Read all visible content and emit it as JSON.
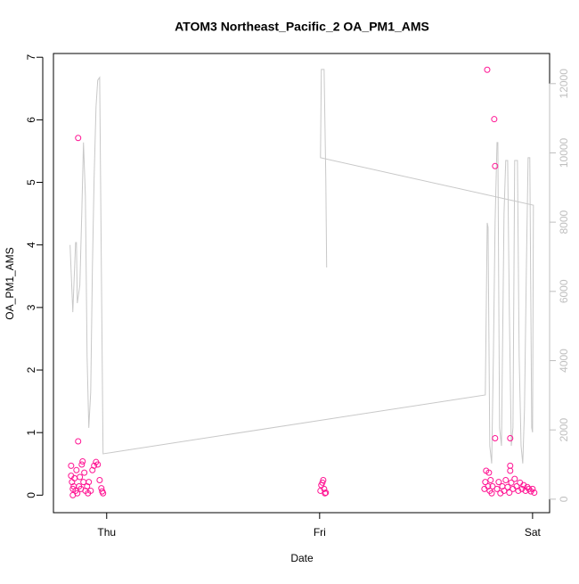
{
  "chart_data": {
    "type": "scatter",
    "title": "ATOM3 Northeast_Pacific_2 OA_PM1_AMS",
    "xlabel": "Date",
    "ylabel": "OA_PM1_AMS",
    "xlim": [
      -0.25,
      2.08
    ],
    "ylim": [
      -0.28,
      7.06
    ],
    "y2lim": [
      -390,
      12870
    ],
    "xticks": [
      {
        "value": 0,
        "label": "Thu"
      },
      {
        "value": 1,
        "label": "Fri"
      },
      {
        "value": 2,
        "label": "Sat"
      }
    ],
    "yticks": [
      0,
      1,
      2,
      3,
      4,
      5,
      6,
      7
    ],
    "y2ticks": [
      0,
      2000,
      4000,
      6000,
      8000,
      10000,
      12000
    ],
    "y2color": "#bfbfbf",
    "series": [
      {
        "type": "scatter",
        "color": "#ff1493",
        "x": [
          -0.167,
          -0.167,
          -0.163,
          -0.159,
          -0.159,
          -0.155,
          -0.151,
          -0.146,
          -0.142,
          -0.138,
          -0.134,
          -0.134,
          -0.13,
          -0.126,
          -0.121,
          -0.117,
          -0.113,
          -0.109,
          -0.105,
          -0.1,
          -0.092,
          -0.088,
          -0.084,
          -0.075,
          -0.067,
          -0.059,
          -0.05,
          -0.042,
          -0.033,
          -0.025,
          -0.021,
          -0.017,
          1.004,
          1.008,
          1.013,
          1.017,
          1.021,
          1.025,
          1.029,
          1.774,
          1.778,
          1.782,
          1.787,
          1.791,
          1.795,
          1.799,
          1.803,
          1.808,
          1.812,
          1.82,
          1.824,
          1.824,
          1.833,
          1.841,
          1.849,
          1.858,
          1.866,
          1.874,
          1.883,
          1.891,
          1.895,
          1.895,
          1.895,
          1.9,
          1.908,
          1.916,
          1.925,
          1.933,
          1.941,
          1.95,
          1.958,
          1.967,
          1.975,
          1.983,
          1.992,
          2.0,
          2.008
        ],
        "values": [
          0.47,
          0.31,
          0.21,
          0.1,
          0.0,
          0.14,
          0.27,
          0.07,
          0.4,
          0.03,
          5.71,
          0.86,
          0.14,
          0.29,
          0.1,
          0.49,
          0.54,
          0.21,
          0.36,
          0.07,
          0.14,
          0.03,
          0.21,
          0.07,
          0.4,
          0.47,
          0.53,
          0.49,
          0.24,
          0.11,
          0.06,
          0.03,
          0.07,
          0.16,
          0.2,
          0.24,
          0.1,
          0.03,
          0.04,
          0.1,
          0.21,
          0.39,
          6.8,
          0.14,
          0.36,
          0.07,
          0.24,
          0.03,
          0.14,
          6.01,
          5.26,
          0.91,
          0.1,
          0.21,
          0.03,
          0.14,
          0.07,
          0.24,
          0.13,
          0.04,
          0.91,
          0.47,
          0.39,
          0.2,
          0.1,
          0.26,
          0.14,
          0.07,
          0.2,
          0.1,
          0.16,
          0.07,
          0.13,
          0.1,
          0.06,
          0.1,
          0.04
        ]
      },
      {
        "type": "line",
        "axis": "y2",
        "color": "#c8c8c8",
        "x": [
          -0.172,
          -0.159,
          -0.146,
          -0.142,
          -0.138,
          -0.126,
          -0.117,
          -0.109,
          -0.1,
          -0.092,
          -0.084,
          -0.075,
          -0.067,
          -0.059,
          -0.05,
          -0.042,
          -0.033,
          -0.025,
          -0.017,
          1.778,
          1.787,
          1.791,
          1.799,
          1.808,
          1.816,
          1.824,
          1.833,
          1.837,
          1.845,
          1.854,
          1.866,
          1.874,
          1.883,
          1.891,
          1.9,
          1.908,
          1.916,
          1.929,
          1.937,
          1.946,
          1.954,
          1.962,
          1.971,
          1.979,
          1.987,
          1.996,
          2.0,
          2.004,
          1.004,
          1.008,
          1.021,
          1.029,
          1.033
        ],
        "values": [
          7340,
          5400,
          7410,
          7410,
          5660,
          6180,
          8240,
          10300,
          8750,
          4120,
          2060,
          3090,
          6690,
          9270,
          11330,
          12100,
          12180,
          6690,
          1310,
          3010,
          7980,
          7850,
          1540,
          1030,
          4120,
          7980,
          10300,
          10300,
          2060,
          1540,
          8240,
          9780,
          9780,
          5400,
          1540,
          2060,
          9780,
          9780,
          4120,
          1540,
          1030,
          2570,
          6690,
          9860,
          9860,
          2060,
          1930,
          8490,
          9860,
          12410,
          12410,
          9270,
          6690
        ]
      }
    ]
  }
}
